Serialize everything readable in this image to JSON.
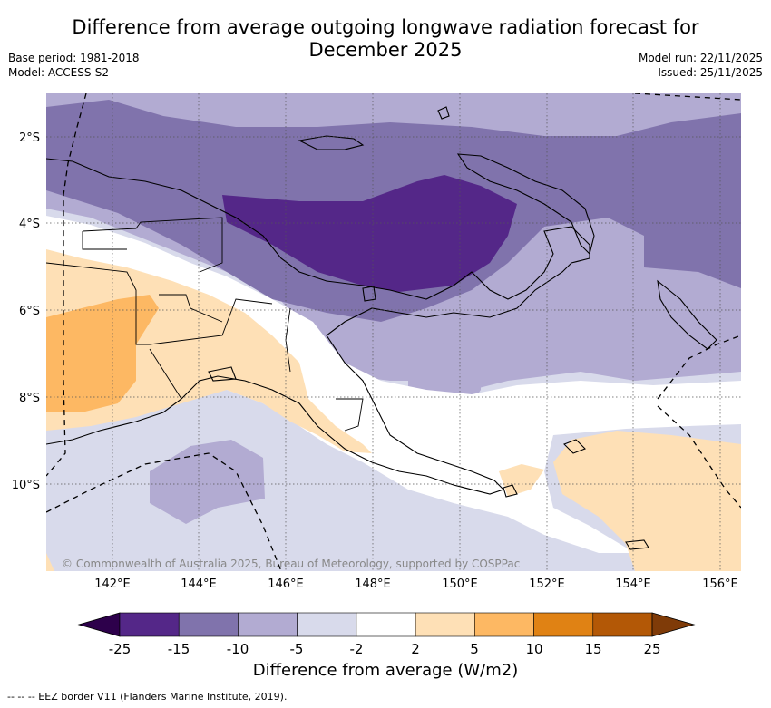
{
  "title": {
    "line1": "Difference from average outgoing longwave radiation forecast for",
    "line2": "December 2025"
  },
  "meta": {
    "base_period": "Base period: 1981-2018",
    "model": "Model: ACCESS-S2",
    "model_run": "Model run: 22/11/2025",
    "issued": "Issued: 25/11/2025"
  },
  "map": {
    "lat_labels": [
      "2°S",
      "4°S",
      "6°S",
      "8°S",
      "10°S"
    ],
    "lon_labels": [
      "142°E",
      "144°E",
      "146°E",
      "148°E",
      "150°E",
      "152°E",
      "154°E",
      "156°E"
    ],
    "credit": "© Commonwealth of Australia 2025, Bureau of Meteorology, supported by COSPPac"
  },
  "colorbar": {
    "title": "Difference from average (W/m2)",
    "boundaries": [
      "-25",
      "-15",
      "-10",
      "-5",
      "-2",
      "2",
      "5",
      "10",
      "15",
      "25"
    ],
    "colors": {
      "under": "#2d004b",
      "bins": [
        "#542788",
        "#8073ac",
        "#b2abd2",
        "#d8daeb",
        "#ffffff",
        "#fee0b6",
        "#fdb863",
        "#e08214",
        "#b35806"
      ],
      "over": "#7f3b08"
    }
  },
  "footnote": "--  --  -- EEZ border V11 (Flanders Marine Institute, 2019)."
}
